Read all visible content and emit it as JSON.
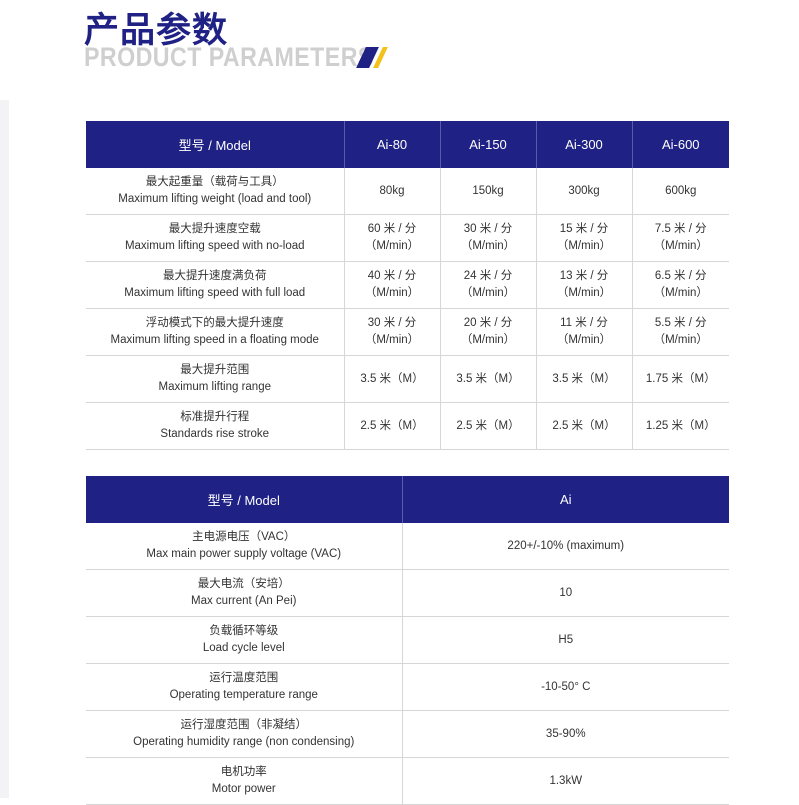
{
  "heading": {
    "cn": "产品参数",
    "en": "PRODUCT PARAMETERS",
    "accent_colors": [
      "#1f2184",
      "#f2c21b"
    ]
  },
  "table1": {
    "headers": [
      "型号 / Model",
      "Ai-80",
      "Ai-150",
      "Ai-300",
      "Ai-600"
    ],
    "rows": [
      {
        "cn": "最大起重量（载荷与工具）",
        "en": "Maximum lifting weight (load and tool)",
        "values": [
          [
            "80kg"
          ],
          [
            "150kg"
          ],
          [
            "300kg"
          ],
          [
            "600kg"
          ]
        ]
      },
      {
        "cn": "最大提升速度空载",
        "en": "Maximum lifting speed with no-load",
        "values": [
          [
            "60 米 / 分",
            "（M/min）"
          ],
          [
            "30 米 / 分",
            "（M/min）"
          ],
          [
            "15 米 / 分",
            "（M/min）"
          ],
          [
            "7.5 米 / 分",
            "（M/min）"
          ]
        ]
      },
      {
        "cn": "最大提升速度满负荷",
        "en": "Maximum lifting speed with full load",
        "values": [
          [
            "40 米 / 分",
            "（M/min）"
          ],
          [
            "24 米 / 分",
            "（M/min）"
          ],
          [
            "13 米 / 分",
            "（M/min）"
          ],
          [
            "6.5 米 / 分",
            "（M/min）"
          ]
        ]
      },
      {
        "cn": "浮动模式下的最大提升速度",
        "en": "Maximum lifting speed in a floating mode",
        "values": [
          [
            "30 米 / 分",
            "（M/min）"
          ],
          [
            "20 米 / 分",
            "（M/min）"
          ],
          [
            "11 米 / 分",
            "（M/min）"
          ],
          [
            "5.5 米 / 分",
            "（M/min）"
          ]
        ]
      },
      {
        "cn": "最大提升范围",
        "en": "Maximum lifting range",
        "values": [
          [
            "3.5 米（M）"
          ],
          [
            "3.5 米（M）"
          ],
          [
            "3.5 米（M）"
          ],
          [
            "1.75 米（M）"
          ]
        ]
      },
      {
        "cn": "标准提升行程",
        "en": "Standards rise stroke",
        "values": [
          [
            "2.5 米（M）"
          ],
          [
            "2.5 米（M）"
          ],
          [
            "2.5 米（M）"
          ],
          [
            "1.25 米（M）"
          ]
        ]
      }
    ]
  },
  "table2": {
    "headers": [
      "型号 / Model",
      "Ai"
    ],
    "rows": [
      {
        "cn": "主电源电压（VAC）",
        "en": "Max  main power supply voltage (VAC)",
        "value": "220+/-10% (maximum)"
      },
      {
        "cn": "最大电流（安培）",
        "en": "Max current (An Pei)",
        "value": "10"
      },
      {
        "cn": "负载循环等级",
        "en": "Load cycle level",
        "value": "H5"
      },
      {
        "cn": "运行温度范围",
        "en": "Operating temperature range",
        "value": "-10-50° C"
      },
      {
        "cn": "运行湿度范围（非凝结）",
        "en": "Operating humidity range (non condensing)",
        "value": "35-90%"
      },
      {
        "cn": "电机功率",
        "en": "Motor power",
        "value": "1.3kW"
      }
    ]
  }
}
